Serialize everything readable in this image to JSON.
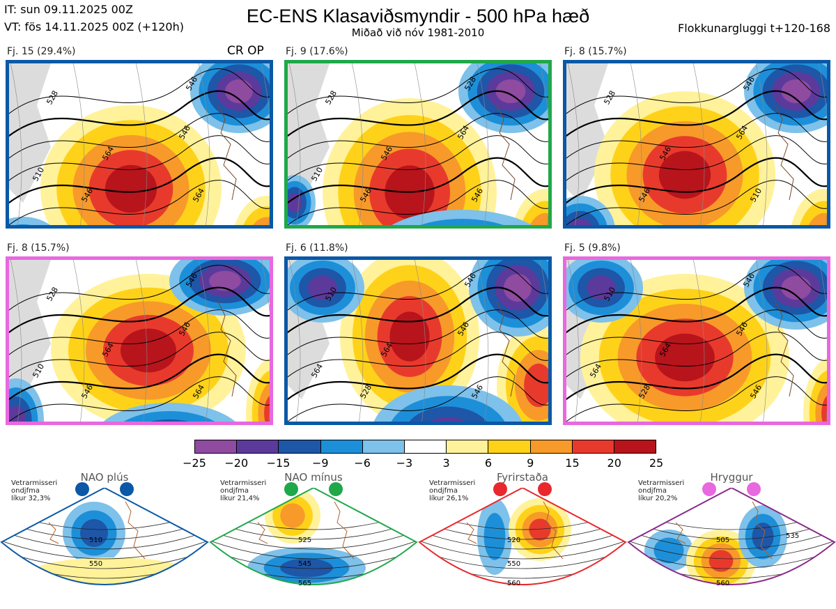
{
  "header": {
    "init_time": "IT: sun 09.11.2025 00Z",
    "valid_time": "VT: fös 14.11.2025 00Z  (+120h)",
    "title": "EC-ENS Klasaviðsmyndir - 500 hPa hæð",
    "subtitle": "Miðað við nóv 1981-2010",
    "window": "Flokkunargluggi t+120-168"
  },
  "cluster_panels": [
    {
      "label": "Fj. 15 (29.4%)",
      "border": "#0a58a6",
      "tag": "CR OP",
      "contours": [
        "528",
        "546",
        "546",
        "564",
        "546",
        "564",
        "510"
      ]
    },
    {
      "label": "Fj. 9 (17.6%)",
      "border": "#1fa84a",
      "tag": "",
      "contours": [
        "528",
        "546",
        "564",
        "546",
        "528",
        "546",
        "510"
      ]
    },
    {
      "label": "Fj. 8 (15.7%)",
      "border": "#0a58a6",
      "tag": "",
      "contours": [
        "528",
        "546",
        "564",
        "546",
        "546",
        "510"
      ]
    },
    {
      "label": "Fj. 8 (15.7%)",
      "border": "#e868e0",
      "tag": "",
      "contours": [
        "528",
        "546",
        "546",
        "564",
        "546",
        "564",
        "510"
      ]
    },
    {
      "label": "Fj. 6 (11.8%)",
      "border": "#0a58a6",
      "tag": "",
      "contours": [
        "510",
        "528",
        "546",
        "564",
        "546",
        "546",
        "564"
      ]
    },
    {
      "label": "Fj. 5 (9.8%)",
      "border": "#e868e0",
      "tag": "",
      "contours": [
        "510",
        "528",
        "546",
        "564",
        "546",
        "546",
        "564"
      ]
    }
  ],
  "colorbar": {
    "colors": [
      "#8e4ba0",
      "#5b3a9b",
      "#1e56a8",
      "#1d8fd8",
      "#7ec1ea",
      "#ffffff",
      "#fff29a",
      "#ffd21a",
      "#f79a2a",
      "#e83a2c",
      "#b8141c"
    ],
    "ticks": [
      "−25",
      "−20",
      "−15",
      "−9",
      "−6",
      "−3",
      "3",
      "6",
      "9",
      "15",
      "20",
      "25"
    ]
  },
  "regimes": [
    {
      "name": "NAO plús",
      "note": [
        "Vetrarmisseri",
        "ondjfma",
        "líkur 32,3%"
      ],
      "dot_color": "#0a58a6",
      "border": "#0a58a6",
      "contours": [
        "510",
        "550"
      ]
    },
    {
      "name": "NAO mínus",
      "note": [
        "Vetrarmisseri",
        "ondjfma",
        "líkur 21,4%"
      ],
      "dot_color": "#1fa84a",
      "border": "#1fa84a",
      "contours": [
        "525",
        "545",
        "565"
      ]
    },
    {
      "name": "Fyrirstaða",
      "note": [
        "Vetrarmisseri",
        "ondjfma",
        "líkur 26,1%"
      ],
      "dot_color": "#e8282c",
      "border": "#e8282c",
      "contours": [
        "520",
        "550",
        "560"
      ]
    },
    {
      "name": "Hryggur",
      "note": [
        "Vetrarmisseri",
        "ondjfma",
        "líkur 20,2%"
      ],
      "dot_color": "#e868e0",
      "border": "#8a2a8a",
      "contours": [
        "505",
        "535",
        "560"
      ]
    }
  ]
}
